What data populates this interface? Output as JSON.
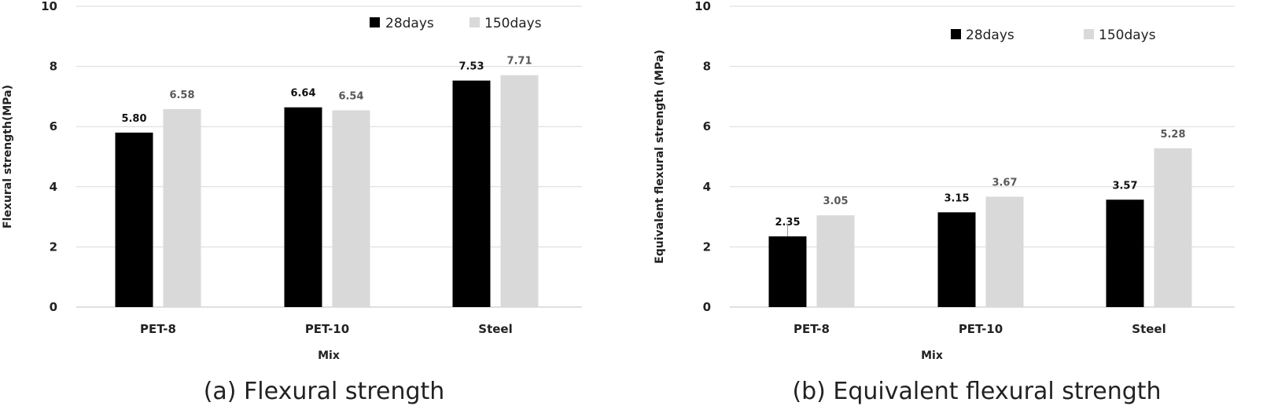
{
  "chart_data": [
    {
      "type": "bar",
      "caption": "(a) Flexural strength",
      "categories": [
        "PET-8",
        "PET-10",
        "Steel"
      ],
      "series": [
        {
          "name": "28days",
          "values": [
            5.8,
            6.64,
            7.53
          ],
          "labels": [
            "5.80",
            "6.64",
            "7.53"
          ],
          "color": "#000000"
        },
        {
          "name": "150days",
          "values": [
            6.58,
            6.54,
            7.71
          ],
          "labels": [
            "6.58",
            "6.54",
            "7.71"
          ],
          "color": "#d9d9d9"
        }
      ],
      "xlabel": "Mix",
      "ylabel": "Flexural strength(MPa)",
      "ylim": [
        0,
        10
      ],
      "yticks": [
        "0",
        "2",
        "4",
        "6",
        "8",
        "10"
      ],
      "grid": true,
      "legend": "top-right"
    },
    {
      "type": "bar",
      "caption": "(b) Equivalent flexural strength",
      "categories": [
        "PET-8",
        "PET-10",
        "Steel"
      ],
      "series": [
        {
          "name": "28days",
          "values": [
            2.35,
            3.15,
            3.57
          ],
          "labels": [
            "2.35",
            "3.15",
            "3.57"
          ],
          "color": "#000000"
        },
        {
          "name": "150days",
          "values": [
            3.05,
            3.67,
            5.28
          ],
          "labels": [
            "3.05",
            "3.67",
            "5.28"
          ],
          "color": "#d9d9d9"
        }
      ],
      "xlabel": "Mix",
      "ylabel": "Equivalent flexural strength (MPa)",
      "ylim": [
        0,
        10
      ],
      "yticks": [
        "0",
        "2",
        "4",
        "6",
        "8",
        "10"
      ],
      "grid": true,
      "legend": "top-right"
    }
  ],
  "colors": {
    "series_28days": "#000000",
    "series_150days": "#d9d9d9",
    "label_28days": "#111111",
    "label_150days": "#595959",
    "grid": "#d9d9d9"
  }
}
